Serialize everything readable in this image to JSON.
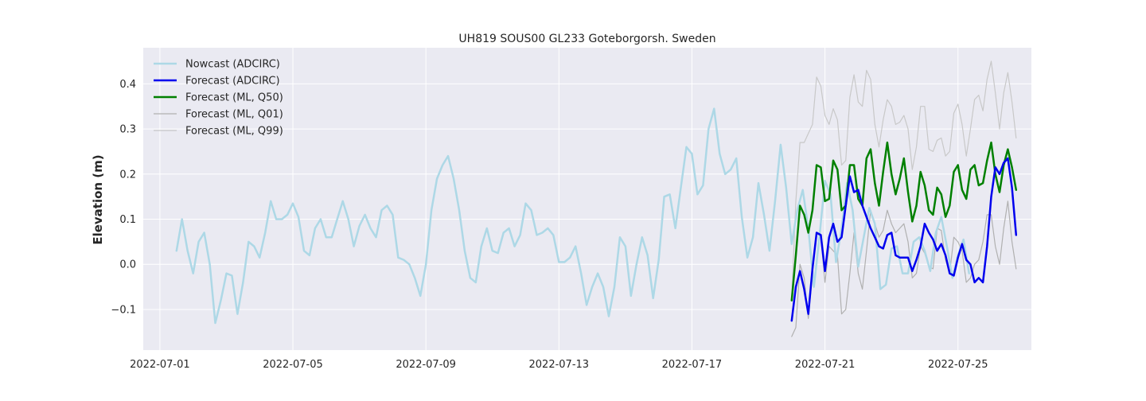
{
  "chart_data": {
    "type": "line",
    "title": "UH819 SOUS00 GL233 Goteborgorsh. Sweden",
    "xlabel": "",
    "ylabel": "Elevation (m)",
    "x_type": "datetime",
    "xlim": [
      "2022-06-30T12:00",
      "2022-07-27T05:00"
    ],
    "ylim": [
      -0.19,
      0.48
    ],
    "x_ticks": [
      "2022-07-01",
      "2022-07-05",
      "2022-07-09",
      "2022-07-13",
      "2022-07-17",
      "2022-07-21",
      "2022-07-25"
    ],
    "y_ticks": [
      -0.1,
      0.0,
      0.1,
      0.2,
      0.3,
      0.4
    ],
    "y_tick_labels": [
      "−0.1",
      "0.0",
      "0.1",
      "0.2",
      "0.3",
      "0.4"
    ],
    "grid": true,
    "background": "#eaeaf2",
    "legend_position": "upper left",
    "series": [
      {
        "name": "Nowcast (ADCIRC)",
        "color": "#add8e6",
        "width": 2.5,
        "start": "2022-07-01T12:00",
        "step_hours": 4,
        "values": [
          0.03,
          0.1,
          0.03,
          -0.02,
          0.05,
          0.07,
          0.0,
          -0.13,
          -0.08,
          -0.02,
          -0.025,
          -0.11,
          -0.04,
          0.05,
          0.04,
          0.015,
          0.07,
          0.14,
          0.1,
          0.1,
          0.11,
          0.135,
          0.105,
          0.03,
          0.02,
          0.08,
          0.1,
          0.06,
          0.06,
          0.1,
          0.14,
          0.1,
          0.04,
          0.085,
          0.11,
          0.08,
          0.06,
          0.12,
          0.13,
          0.11,
          0.015,
          0.01,
          0.0,
          -0.03,
          -0.07,
          0.0,
          0.12,
          0.19,
          0.22,
          0.24,
          0.19,
          0.12,
          0.03,
          -0.03,
          -0.04,
          0.04,
          0.08,
          0.03,
          0.025,
          0.07,
          0.08,
          0.04,
          0.065,
          0.135,
          0.12,
          0.065,
          0.07,
          0.08,
          0.065,
          0.005,
          0.005,
          0.015,
          0.04,
          -0.02,
          -0.09,
          -0.05,
          -0.02,
          -0.05,
          -0.115,
          -0.05,
          0.06,
          0.04,
          -0.07,
          0.0,
          0.06,
          0.02,
          -0.075,
          0.01,
          0.15,
          0.155,
          0.08,
          0.17,
          0.26,
          0.245,
          0.155,
          0.175,
          0.3,
          0.345,
          0.245,
          0.2,
          0.21,
          0.235,
          0.105,
          0.015,
          0.06,
          0.18,
          0.11,
          0.03,
          0.14,
          0.265,
          0.17,
          0.045,
          0.12,
          0.165,
          0.08,
          -0.05,
          0.06,
          0.185,
          0.155,
          0.005,
          0.08,
          0.18,
          0.12,
          -0.005,
          0.06,
          0.125,
          0.09,
          -0.055,
          -0.045,
          0.035,
          0.04,
          -0.02,
          -0.02,
          0.05,
          0.06,
          0.03,
          -0.015,
          0.07,
          0.105,
          0.04,
          -0.03,
          0.02,
          0.055,
          -0.02
        ]
      },
      {
        "name": "Forecast (ADCIRC)",
        "color": "#0000ee",
        "width": 2.5,
        "start": "2022-07-20T00:00",
        "step_hours": 3,
        "values": [
          -0.125,
          -0.05,
          -0.015,
          -0.055,
          -0.11,
          -0.01,
          0.07,
          0.065,
          -0.015,
          0.06,
          0.09,
          0.05,
          0.06,
          0.13,
          0.195,
          0.16,
          0.165,
          0.13,
          0.105,
          0.08,
          0.06,
          0.04,
          0.035,
          0.065,
          0.07,
          0.02,
          0.015,
          0.015,
          0.015,
          -0.015,
          0.01,
          0.04,
          0.09,
          0.07,
          0.055,
          0.03,
          0.045,
          0.02,
          -0.02,
          -0.025,
          0.015,
          0.045,
          0.01,
          0.0,
          -0.04,
          -0.03,
          -0.04,
          0.04,
          0.15,
          0.215,
          0.2,
          0.225,
          0.235,
          0.17,
          0.065
        ]
      },
      {
        "name": "Forecast (ML, Q50)",
        "color": "#008000",
        "width": 2.5,
        "start": "2022-07-20T00:00",
        "step_hours": 3,
        "values": [
          -0.08,
          0.02,
          0.13,
          0.11,
          0.07,
          0.12,
          0.22,
          0.215,
          0.14,
          0.145,
          0.23,
          0.21,
          0.12,
          0.13,
          0.22,
          0.22,
          0.145,
          0.13,
          0.235,
          0.255,
          0.18,
          0.13,
          0.205,
          0.27,
          0.2,
          0.155,
          0.19,
          0.235,
          0.16,
          0.095,
          0.13,
          0.205,
          0.175,
          0.12,
          0.11,
          0.17,
          0.155,
          0.105,
          0.13,
          0.205,
          0.22,
          0.165,
          0.145,
          0.21,
          0.22,
          0.175,
          0.18,
          0.23,
          0.27,
          0.2,
          0.16,
          0.22,
          0.255,
          0.215,
          0.165
        ]
      },
      {
        "name": "Forecast (ML, Q01)",
        "color": "#b0b0b0",
        "width": 1.2,
        "start": "2022-07-20T00:00",
        "step_hours": 3,
        "values": [
          -0.16,
          -0.14,
          0.0,
          -0.03,
          -0.12,
          -0.02,
          0.07,
          0.06,
          -0.04,
          0.04,
          0.03,
          0.02,
          -0.11,
          -0.1,
          -0.02,
          0.07,
          -0.02,
          -0.055,
          0.03,
          0.12,
          0.09,
          0.06,
          0.075,
          0.12,
          0.09,
          0.07,
          0.08,
          0.09,
          0.05,
          -0.03,
          -0.02,
          0.04,
          0.025,
          -0.005,
          -0.01,
          0.08,
          0.075,
          0.01,
          -0.02,
          0.06,
          0.05,
          0.03,
          -0.04,
          -0.03,
          0.0,
          0.01,
          0.05,
          0.11,
          0.11,
          0.04,
          0.0,
          0.08,
          0.14,
          0.05,
          -0.01
        ]
      },
      {
        "name": "Forecast (ML, Q99)",
        "color": "#c8c8c8",
        "width": 1.2,
        "start": "2022-07-20T00:00",
        "step_hours": 3,
        "values": [
          -0.08,
          0.14,
          0.27,
          0.27,
          0.29,
          0.31,
          0.415,
          0.395,
          0.33,
          0.31,
          0.345,
          0.32,
          0.22,
          0.23,
          0.37,
          0.42,
          0.36,
          0.35,
          0.43,
          0.41,
          0.31,
          0.26,
          0.32,
          0.365,
          0.35,
          0.31,
          0.315,
          0.33,
          0.3,
          0.21,
          0.26,
          0.35,
          0.35,
          0.255,
          0.25,
          0.275,
          0.28,
          0.24,
          0.25,
          0.335,
          0.355,
          0.31,
          0.24,
          0.3,
          0.365,
          0.375,
          0.34,
          0.41,
          0.45,
          0.38,
          0.3,
          0.38,
          0.425,
          0.36,
          0.28
        ]
      }
    ]
  }
}
